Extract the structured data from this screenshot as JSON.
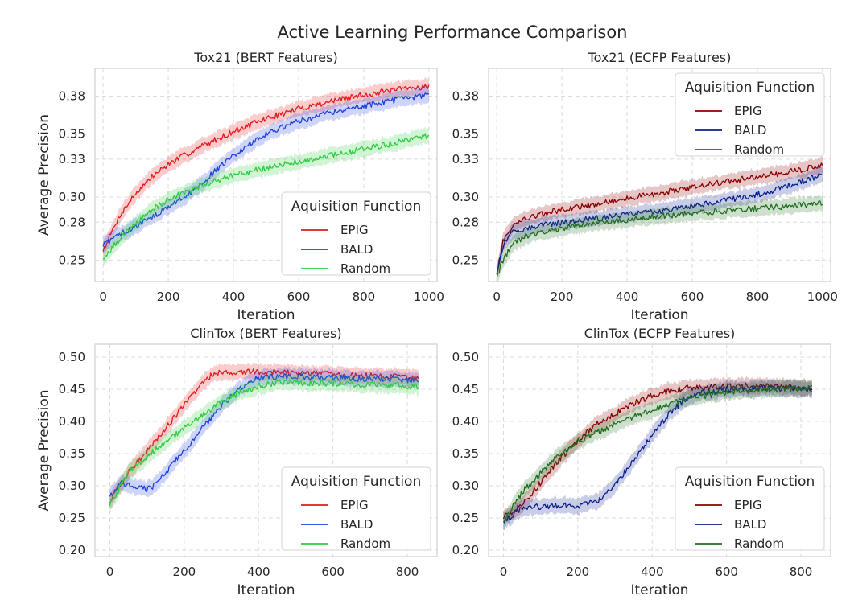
{
  "figure": {
    "title": "Active Learning Performance Comparison"
  },
  "chart_data": [
    {
      "type": "line",
      "title": "Tox21 (BERT Features)",
      "xlabel": "Iteration",
      "ylabel": "Average Precision",
      "xlim": [
        -25,
        1025
      ],
      "ylim": [
        0.233,
        0.402
      ],
      "xticks": [
        0,
        200,
        400,
        600,
        800,
        1000
      ],
      "yticks": [
        0.25,
        0.28,
        0.3,
        0.33,
        0.35,
        0.38
      ],
      "ytick_labels": [
        "0.25",
        "0.28",
        "0.30",
        "0.33",
        "0.35",
        "0.38"
      ],
      "grid": true,
      "legend": {
        "title": "Aquisition Function",
        "placement": "lower-right"
      },
      "series": [
        {
          "name": "EPIG",
          "color": "#e31a1c",
          "x": [
            0,
            50,
            100,
            150,
            200,
            300,
            400,
            500,
            600,
            700,
            800,
            900,
            1000
          ],
          "y": [
            0.258,
            0.285,
            0.303,
            0.316,
            0.326,
            0.34,
            0.352,
            0.362,
            0.37,
            0.376,
            0.381,
            0.385,
            0.388
          ]
        },
        {
          "name": "BALD",
          "color": "#1f3fdd",
          "x": [
            0,
            50,
            100,
            150,
            200,
            250,
            300,
            350,
            400,
            450,
            500,
            600,
            700,
            800,
            900,
            1000
          ],
          "y": [
            0.262,
            0.27,
            0.277,
            0.284,
            0.292,
            0.3,
            0.31,
            0.322,
            0.333,
            0.342,
            0.35,
            0.36,
            0.367,
            0.372,
            0.377,
            0.381
          ]
        },
        {
          "name": "Random",
          "color": "#2ecc40",
          "x": [
            0,
            50,
            100,
            150,
            200,
            300,
            400,
            500,
            600,
            700,
            800,
            900,
            1000
          ],
          "y": [
            0.252,
            0.266,
            0.279,
            0.29,
            0.298,
            0.309,
            0.317,
            0.323,
            0.328,
            0.333,
            0.338,
            0.343,
            0.349
          ]
        }
      ]
    },
    {
      "type": "line",
      "title": "Tox21 (ECFP Features)",
      "xlabel": "Iteration",
      "ylabel": "",
      "xlim": [
        -25,
        1025
      ],
      "ylim": [
        0.233,
        0.402
      ],
      "xticks": [
        0,
        200,
        400,
        600,
        800,
        1000
      ],
      "yticks": [
        0.25,
        0.28,
        0.3,
        0.33,
        0.35,
        0.38
      ],
      "ytick_labels": [
        "0.25",
        "0.28",
        "0.30",
        "0.33",
        "0.35",
        "0.38"
      ],
      "grid": true,
      "legend": {
        "title": "Aquisition Function",
        "placement": "upper-right"
      },
      "series": [
        {
          "name": "EPIG",
          "color": "#8b0000",
          "x": [
            0,
            20,
            50,
            100,
            200,
            300,
            400,
            500,
            600,
            700,
            800,
            900,
            1000
          ],
          "y": [
            0.24,
            0.265,
            0.278,
            0.284,
            0.29,
            0.294,
            0.299,
            0.303,
            0.308,
            0.312,
            0.316,
            0.32,
            0.325
          ]
        },
        {
          "name": "BALD",
          "color": "#0a1f8f",
          "x": [
            0,
            20,
            50,
            100,
            200,
            300,
            400,
            500,
            600,
            700,
            800,
            900,
            1000
          ],
          "y": [
            0.24,
            0.262,
            0.272,
            0.276,
            0.28,
            0.283,
            0.286,
            0.289,
            0.293,
            0.297,
            0.302,
            0.309,
            0.318
          ]
        },
        {
          "name": "Random",
          "color": "#1e6e1e",
          "x": [
            0,
            20,
            50,
            100,
            200,
            300,
            400,
            500,
            600,
            700,
            800,
            900,
            1000
          ],
          "y": [
            0.237,
            0.25,
            0.263,
            0.27,
            0.275,
            0.279,
            0.282,
            0.285,
            0.287,
            0.289,
            0.291,
            0.293,
            0.295
          ]
        }
      ]
    },
    {
      "type": "line",
      "title": "ClinTox (BERT Features)",
      "xlabel": "Iteration",
      "ylabel": "Average Precision",
      "xlim": [
        -40,
        880
      ],
      "ylim": [
        0.19,
        0.52
      ],
      "xticks": [
        0,
        200,
        400,
        600,
        800
      ],
      "yticks": [
        0.2,
        0.25,
        0.3,
        0.35,
        0.4,
        0.45,
        0.5
      ],
      "ytick_labels": [
        "0.20",
        "0.25",
        "0.30",
        "0.35",
        "0.40",
        "0.45",
        "0.50"
      ],
      "grid": true,
      "legend": {
        "title": "Aquisition Function",
        "placement": "lower-right"
      },
      "series": [
        {
          "name": "EPIG",
          "color": "#e31a1c",
          "x": [
            0,
            50,
            100,
            150,
            200,
            250,
            280,
            350,
            450,
            550,
            650,
            750,
            830
          ],
          "y": [
            0.275,
            0.32,
            0.355,
            0.39,
            0.425,
            0.46,
            0.475,
            0.478,
            0.476,
            0.474,
            0.472,
            0.47,
            0.468
          ]
        },
        {
          "name": "BALD",
          "color": "#1f3fdd",
          "x": [
            0,
            30,
            60,
            100,
            120,
            150,
            200,
            250,
            300,
            350,
            400,
            450,
            500,
            600,
            700,
            830
          ],
          "y": [
            0.285,
            0.305,
            0.3,
            0.295,
            0.3,
            0.32,
            0.355,
            0.39,
            0.425,
            0.452,
            0.468,
            0.47,
            0.47,
            0.468,
            0.466,
            0.464
          ]
        },
        {
          "name": "Random",
          "color": "#2ecc40",
          "x": [
            0,
            50,
            100,
            150,
            200,
            250,
            300,
            350,
            400,
            450,
            550,
            650,
            750,
            830
          ],
          "y": [
            0.27,
            0.32,
            0.345,
            0.368,
            0.39,
            0.41,
            0.43,
            0.445,
            0.455,
            0.46,
            0.46,
            0.458,
            0.456,
            0.455
          ]
        }
      ]
    },
    {
      "type": "line",
      "title": "ClinTox (ECFP Features)",
      "xlabel": "Iteration",
      "ylabel": "",
      "xlim": [
        -40,
        880
      ],
      "ylim": [
        0.19,
        0.52
      ],
      "xticks": [
        0,
        200,
        400,
        600,
        800
      ],
      "yticks": [
        0.2,
        0.25,
        0.3,
        0.35,
        0.4,
        0.45,
        0.5
      ],
      "ytick_labels": [
        "0.20",
        "0.25",
        "0.30",
        "0.35",
        "0.40",
        "0.45",
        "0.50"
      ],
      "grid": true,
      "legend": {
        "title": "Aquisition Function",
        "placement": "lower-right"
      },
      "series": [
        {
          "name": "EPIG",
          "color": "#8b0000",
          "x": [
            0,
            50,
            100,
            150,
            200,
            250,
            300,
            350,
            400,
            450,
            500,
            600,
            700,
            830
          ],
          "y": [
            0.25,
            0.27,
            0.305,
            0.34,
            0.37,
            0.395,
            0.412,
            0.428,
            0.44,
            0.448,
            0.452,
            0.455,
            0.455,
            0.452
          ]
        },
        {
          "name": "BALD",
          "color": "#0a1f8f",
          "x": [
            0,
            50,
            100,
            150,
            200,
            250,
            300,
            350,
            400,
            450,
            500,
            600,
            700,
            830
          ],
          "y": [
            0.245,
            0.265,
            0.268,
            0.27,
            0.268,
            0.275,
            0.3,
            0.34,
            0.38,
            0.415,
            0.44,
            0.45,
            0.452,
            0.45
          ]
        },
        {
          "name": "Random",
          "color": "#1e6e1e",
          "x": [
            0,
            50,
            100,
            150,
            200,
            250,
            300,
            350,
            400,
            450,
            500,
            600,
            700,
            830
          ],
          "y": [
            0.245,
            0.29,
            0.32,
            0.348,
            0.368,
            0.383,
            0.395,
            0.408,
            0.418,
            0.428,
            0.436,
            0.445,
            0.45,
            0.452
          ]
        }
      ]
    }
  ]
}
